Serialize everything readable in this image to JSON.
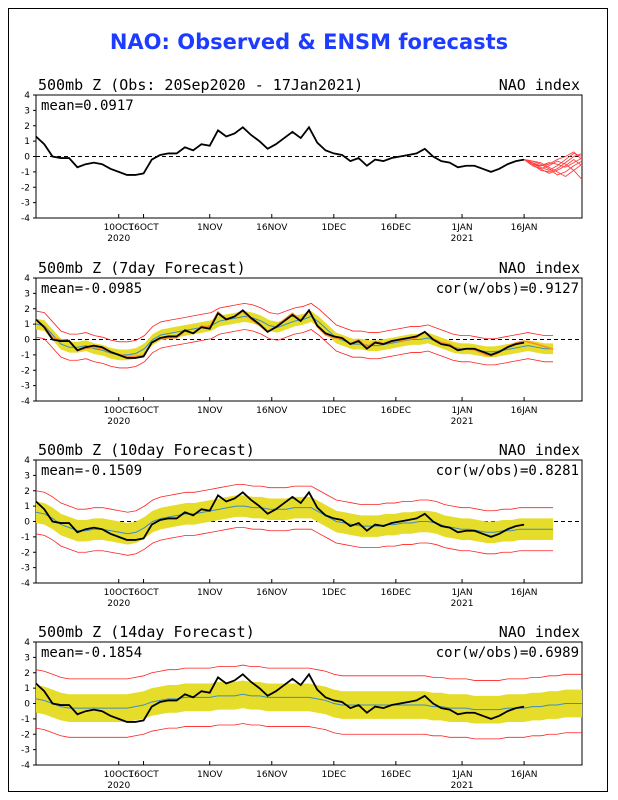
{
  "page_title": "NAO: Observed & ENSM forecasts",
  "colors": {
    "title": "#1e3cff",
    "observed": "#000000",
    "ensemble_members": "#ff4040",
    "spread_band": "#e6dc2a",
    "ensemble_mean": "#3c8cc8",
    "forecast_7day": "#ff8c28",
    "envelope": "#ff2020"
  },
  "x_ticks": [
    {
      "day": 20,
      "label": "10OCT",
      "year": "2020"
    },
    {
      "day": 26,
      "label": "16OCT"
    },
    {
      "day": 42,
      "label": "1NOV"
    },
    {
      "day": 57,
      "label": "16NOV"
    },
    {
      "day": 72,
      "label": "1DEC"
    },
    {
      "day": 87,
      "label": "16DEC"
    },
    {
      "day": 103,
      "label": "1JAN",
      "year": "2021"
    },
    {
      "day": 118,
      "label": "16JAN"
    }
  ],
  "chart_data": [
    {
      "type": "line",
      "title": "500mb Z (Obs: 20Sep2020 - 17Jan2021)",
      "right_label": "NAO index",
      "mean_label": "mean=0.0917",
      "cor_label": "",
      "ylim": [
        -4,
        4
      ],
      "xlim_days": [
        0,
        132
      ],
      "series": [
        {
          "kind": "observed",
          "x": [
            0,
            2,
            4,
            6,
            8,
            10,
            12,
            14,
            16,
            18,
            20,
            22,
            24,
            26,
            28,
            30,
            32,
            34,
            36,
            38,
            40,
            42,
            44,
            46,
            48,
            50,
            52,
            54,
            56,
            58,
            60,
            62,
            64,
            66,
            68,
            70,
            72,
            74,
            76,
            78,
            80,
            82,
            84,
            86,
            88,
            90,
            92,
            94,
            96,
            98,
            100,
            102,
            104,
            106,
            108,
            110,
            112,
            114,
            116,
            118
          ],
          "y": [
            1.3,
            0.8,
            0.0,
            -0.1,
            -0.1,
            -0.7,
            -0.5,
            -0.4,
            -0.5,
            -0.8,
            -1.0,
            -1.2,
            -1.2,
            -1.1,
            -0.2,
            0.1,
            0.2,
            0.2,
            0.6,
            0.4,
            0.8,
            0.7,
            1.7,
            1.3,
            1.5,
            1.9,
            1.4,
            1.0,
            0.5,
            0.8,
            1.2,
            1.6,
            1.2,
            1.9,
            0.9,
            0.4,
            0.2,
            0.1,
            -0.3,
            -0.1,
            -0.6,
            -0.2,
            -0.3,
            -0.1,
            0.0,
            0.1,
            0.2,
            0.5,
            0.0,
            -0.3,
            -0.4,
            -0.7,
            -0.6,
            -0.6,
            -0.8,
            -1.0,
            -0.8,
            -0.5,
            -0.3,
            -0.2
          ]
        },
        {
          "kind": "members",
          "start_day": 118,
          "x": [
            118,
            120,
            122,
            124,
            126,
            128,
            130,
            132
          ],
          "members": [
            [
              -0.2,
              -0.4,
              -0.6,
              -0.5,
              -0.2,
              0.0,
              0.3,
              -0.2
            ],
            [
              -0.2,
              -0.5,
              -0.9,
              -1.0,
              -0.8,
              -0.4,
              0.0,
              0.2
            ],
            [
              -0.2,
              -0.3,
              -0.5,
              -0.8,
              -1.2,
              -1.0,
              -0.6,
              -0.3
            ],
            [
              -0.2,
              -0.6,
              -0.8,
              -0.6,
              -0.3,
              -0.5,
              -0.9,
              -1.5
            ],
            [
              -0.2,
              -0.4,
              -0.7,
              -0.9,
              -0.6,
              -0.2,
              0.2,
              0.0
            ],
            [
              -0.2,
              -0.3,
              -0.4,
              -0.7,
              -1.0,
              -1.3,
              -0.9,
              -0.5
            ],
            [
              -0.2,
              -0.5,
              -0.6,
              -0.4,
              -0.5,
              -0.7,
              -0.4,
              -0.1
            ],
            [
              -0.2,
              -0.4,
              -0.8,
              -1.1,
              -0.9,
              -0.6,
              -0.2,
              -0.6
            ]
          ]
        }
      ]
    },
    {
      "type": "line",
      "title": "500mb Z (7day Forecast)",
      "right_label": "NAO index",
      "mean_label": "mean=-0.0985",
      "cor_label": "cor(w/obs)=0.9127",
      "ylim": [
        -4,
        4
      ],
      "xlim_days": [
        0,
        132
      ],
      "series": [
        {
          "kind": "band",
          "spread": 0.35,
          "env_spread": 0.85,
          "extend_to": 125,
          "center": [
            1.0,
            0.9,
            0.3,
            -0.3,
            -0.5,
            -0.5,
            -0.4,
            -0.6,
            -0.7,
            -0.9,
            -1.0,
            -1.0,
            -0.9,
            -0.6,
            0.0,
            0.3,
            0.4,
            0.5,
            0.6,
            0.7,
            0.8,
            0.9,
            1.2,
            1.3,
            1.4,
            1.5,
            1.4,
            1.2,
            0.9,
            0.8,
            1.0,
            1.2,
            1.3,
            1.5,
            1.1,
            0.6,
            0.1,
            -0.1,
            -0.3,
            -0.3,
            -0.4,
            -0.4,
            -0.3,
            -0.2,
            -0.1,
            0.0,
            0.0,
            0.1,
            -0.1,
            -0.3,
            -0.5,
            -0.6,
            -0.6,
            -0.7,
            -0.8,
            -0.8,
            -0.7,
            -0.6,
            -0.5,
            -0.4,
            -0.5,
            -0.6,
            -0.6
          ]
        },
        {
          "kind": "forecast7",
          "offset": 0.1
        },
        {
          "kind": "observed_ref"
        }
      ]
    },
    {
      "type": "line",
      "title": "500mb Z (10day Forecast)",
      "right_label": "NAO index",
      "mean_label": "mean=-0.1509",
      "cor_label": "cor(w/obs)=0.8281",
      "ylim": [
        -4,
        4
      ],
      "xlim_days": [
        0,
        132
      ],
      "series": [
        {
          "kind": "band",
          "spread": 0.7,
          "env_spread": 1.4,
          "extend_to": 125,
          "center": [
            0.6,
            0.5,
            0.2,
            -0.2,
            -0.4,
            -0.6,
            -0.6,
            -0.5,
            -0.5,
            -0.6,
            -0.7,
            -0.8,
            -0.7,
            -0.4,
            0.0,
            0.2,
            0.3,
            0.4,
            0.5,
            0.5,
            0.6,
            0.7,
            0.8,
            0.9,
            1.0,
            1.0,
            0.9,
            0.9,
            0.8,
            0.8,
            0.8,
            0.9,
            0.9,
            0.9,
            0.6,
            0.3,
            0.0,
            -0.1,
            -0.2,
            -0.3,
            -0.3,
            -0.3,
            -0.2,
            -0.2,
            -0.1,
            -0.1,
            0.0,
            0.0,
            -0.1,
            -0.3,
            -0.4,
            -0.5,
            -0.5,
            -0.6,
            -0.7,
            -0.7,
            -0.6,
            -0.6,
            -0.5,
            -0.5,
            -0.5,
            -0.5,
            -0.5
          ]
        },
        {
          "kind": "observed_ref"
        }
      ]
    },
    {
      "type": "line",
      "title": "500mb Z (14day Forecast)",
      "right_label": "NAO index",
      "mean_label": "mean=-0.1854",
      "cor_label": "cor(w/obs)=0.6989",
      "ylim": [
        -4,
        4
      ],
      "xlim_days": [
        0,
        132
      ],
      "series": [
        {
          "kind": "band",
          "spread": 0.9,
          "env_spread": 1.9,
          "extend_to": 132,
          "center": [
            0.3,
            0.2,
            0.0,
            -0.2,
            -0.3,
            -0.3,
            -0.3,
            -0.3,
            -0.3,
            -0.3,
            -0.3,
            -0.3,
            -0.2,
            -0.1,
            0.1,
            0.2,
            0.3,
            0.3,
            0.4,
            0.4,
            0.4,
            0.4,
            0.5,
            0.5,
            0.5,
            0.6,
            0.5,
            0.5,
            0.4,
            0.4,
            0.4,
            0.4,
            0.4,
            0.4,
            0.3,
            0.2,
            0.0,
            -0.1,
            -0.1,
            -0.1,
            -0.1,
            -0.1,
            -0.1,
            -0.1,
            -0.1,
            -0.1,
            -0.1,
            -0.1,
            -0.2,
            -0.2,
            -0.3,
            -0.3,
            -0.3,
            -0.4,
            -0.4,
            -0.4,
            -0.4,
            -0.3,
            -0.3,
            -0.3,
            -0.2,
            -0.2,
            -0.1,
            -0.1,
            0.0,
            0.0,
            0.0
          ]
        },
        {
          "kind": "observed_ref"
        }
      ]
    }
  ]
}
